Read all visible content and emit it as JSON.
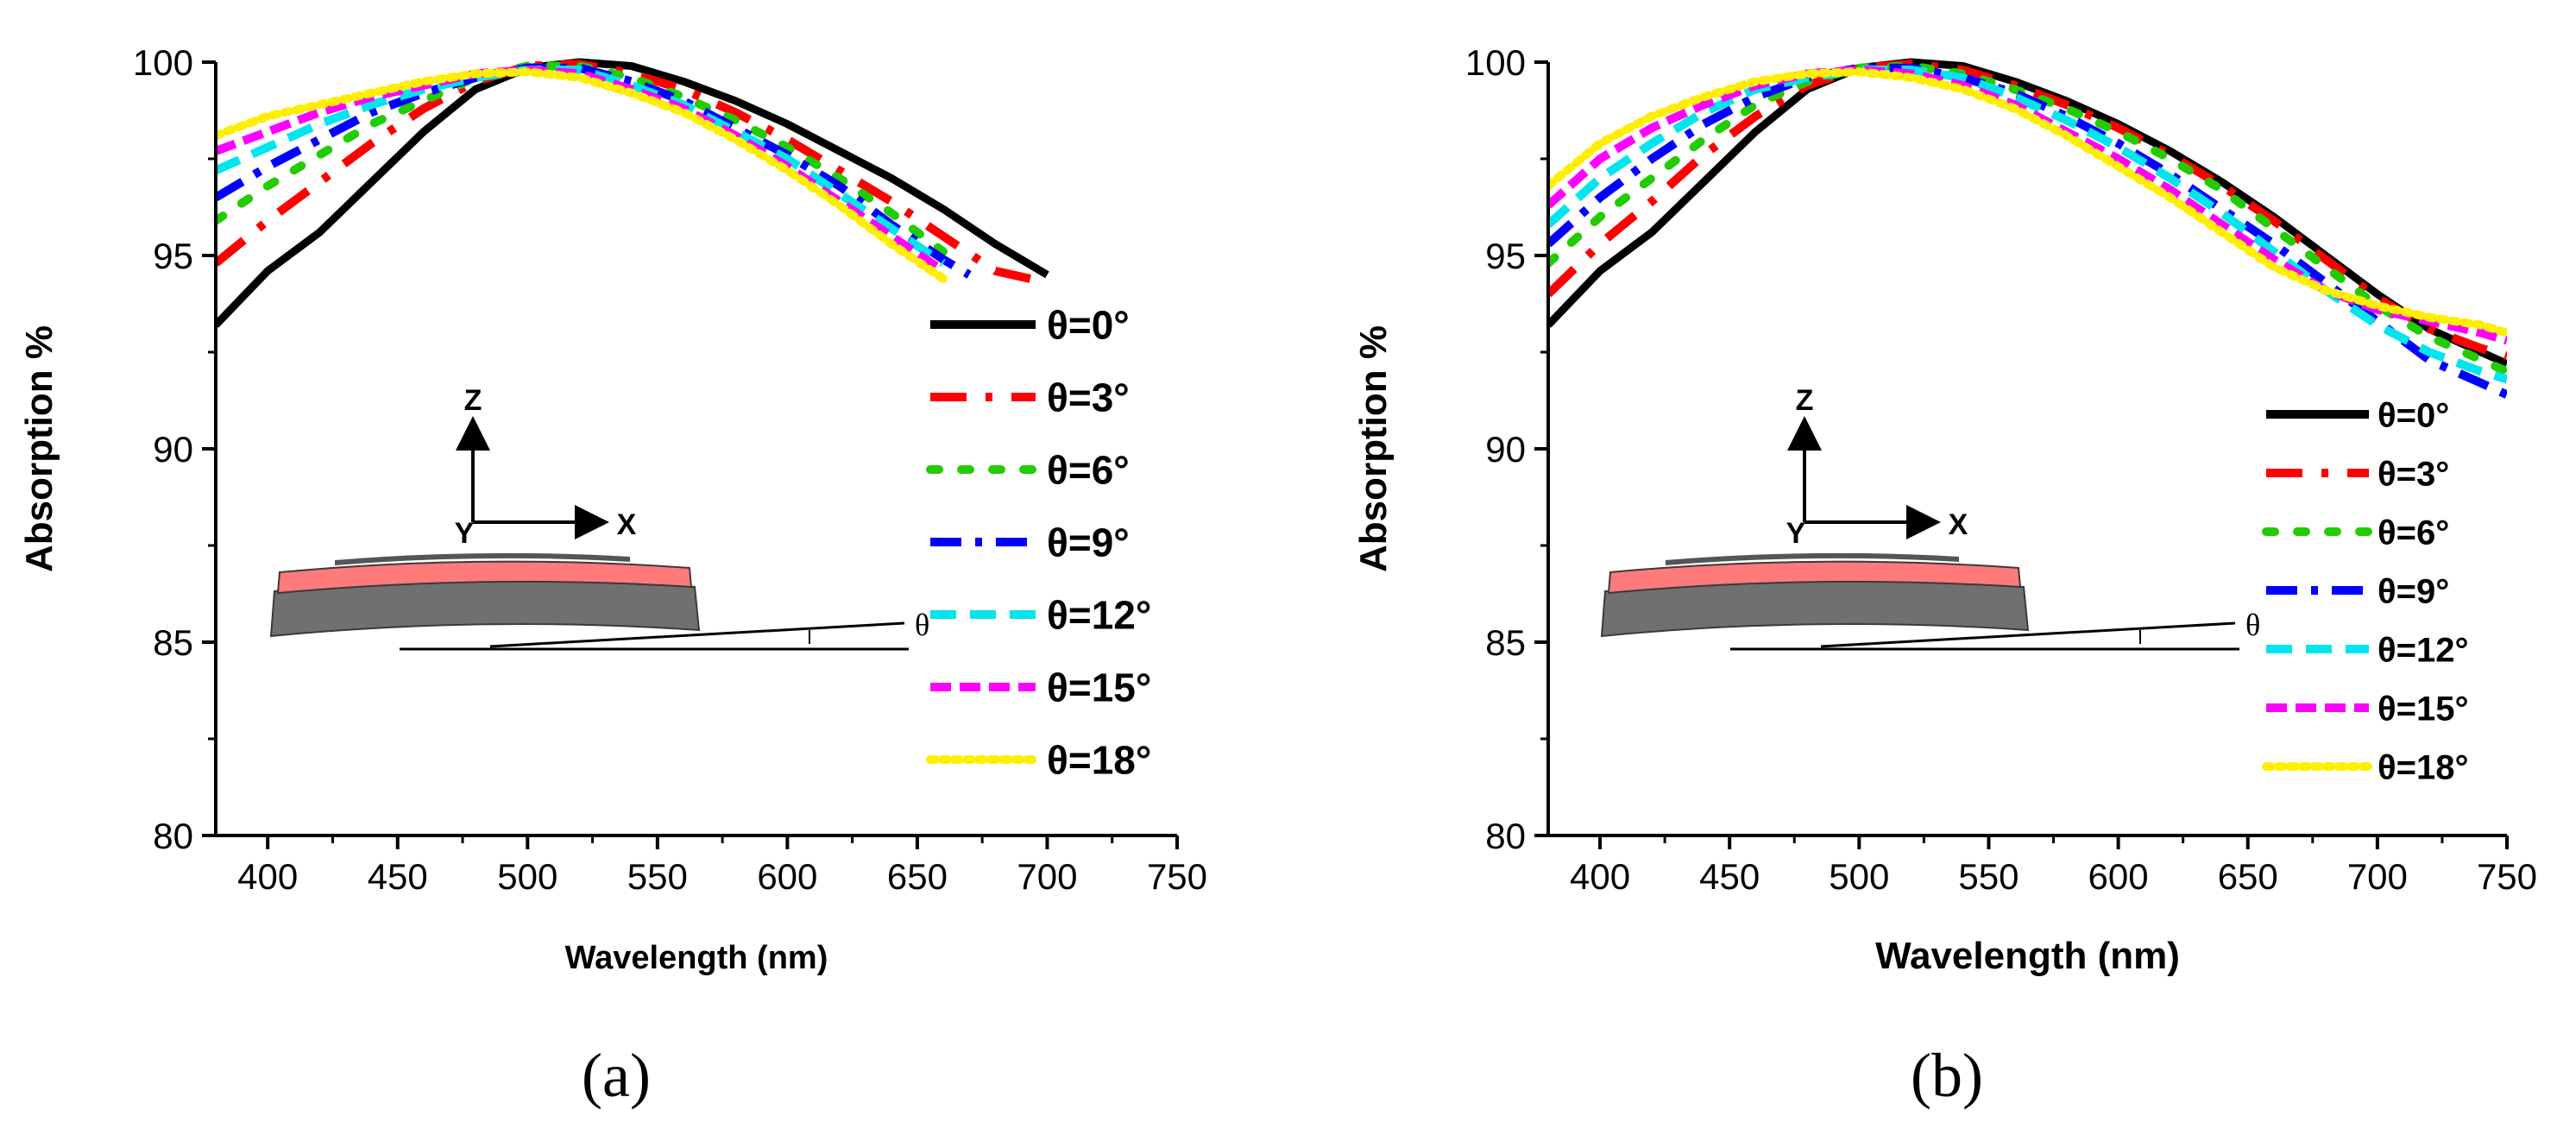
{
  "panel_captions": [
    "(a)",
    "(b)"
  ],
  "inset": {
    "z_label": "Z",
    "y_label": "Y",
    "x_label": "X",
    "angle_label": "θ"
  },
  "colors": {
    "θ=0°": "#000000",
    "θ=3°": "#ff0000",
    "θ=6°": "#22cc00",
    "θ=9°": "#0000ff",
    "θ=12°": "#00e5ee",
    "θ=15°": "#ff00ff",
    "θ=18°": "#ffee00"
  },
  "chart_data": [
    {
      "type": "line",
      "xlabel": "Wavelength (nm)",
      "ylabel": "Absorption %",
      "xlim": [
        380,
        750
      ],
      "ylim": [
        80,
        100
      ],
      "xticks": [
        400,
        450,
        500,
        550,
        600,
        650,
        700,
        750
      ],
      "yticks": [
        80,
        85,
        90,
        95,
        100
      ],
      "legend_position": "right",
      "legend_style": "large",
      "series": [
        {
          "name": "θ=0°",
          "x": [
            380,
            400,
            420,
            440,
            460,
            480,
            500,
            520,
            540,
            560,
            580,
            600,
            620,
            640,
            660,
            680,
            700
          ],
          "y": [
            93.2,
            94.6,
            95.6,
            96.9,
            98.2,
            99.3,
            99.85,
            100,
            99.9,
            99.5,
            99.0,
            98.4,
            97.7,
            97.0,
            96.2,
            95.3,
            94.5
          ]
        },
        {
          "name": "θ=3°",
          "x": [
            380,
            400,
            420,
            440,
            460,
            480,
            500,
            520,
            540,
            560,
            580,
            600,
            620,
            640,
            660,
            680,
            700
          ],
          "y": [
            94.8,
            95.9,
            96.9,
            97.9,
            98.8,
            99.5,
            99.9,
            99.95,
            99.7,
            99.3,
            98.7,
            98.0,
            97.2,
            96.4,
            95.5,
            94.6,
            94.3
          ]
        },
        {
          "name": "θ=6°",
          "x": [
            380,
            400,
            420,
            440,
            460,
            480,
            500,
            520,
            540,
            560,
            580,
            600,
            620,
            640,
            660
          ],
          "y": [
            95.9,
            96.8,
            97.6,
            98.4,
            99.0,
            99.6,
            99.9,
            99.9,
            99.6,
            99.1,
            98.5,
            97.8,
            97.0,
            96.1,
            95.1
          ]
        },
        {
          "name": "θ=9°",
          "x": [
            380,
            400,
            420,
            440,
            460,
            480,
            500,
            520,
            540,
            560,
            580,
            600,
            620,
            640,
            660,
            670
          ],
          "y": [
            96.5,
            97.3,
            98.0,
            98.7,
            99.2,
            99.6,
            99.85,
            99.85,
            99.5,
            99.0,
            98.3,
            97.6,
            96.8,
            95.8,
            94.9,
            94.5
          ]
        },
        {
          "name": "θ=12°",
          "x": [
            380,
            400,
            420,
            440,
            460,
            480,
            500,
            520,
            540,
            560,
            580,
            600,
            620,
            640,
            660
          ],
          "y": [
            97.2,
            97.8,
            98.4,
            98.9,
            99.3,
            99.6,
            99.8,
            99.8,
            99.4,
            98.9,
            98.2,
            97.5,
            96.6,
            95.7,
            94.8
          ]
        },
        {
          "name": "θ=15°",
          "x": [
            380,
            400,
            420,
            440,
            460,
            480,
            500,
            520,
            540,
            560,
            580,
            600,
            620,
            640,
            660
          ],
          "y": [
            97.7,
            98.2,
            98.7,
            99.1,
            99.4,
            99.7,
            99.8,
            99.7,
            99.3,
            98.8,
            98.1,
            97.3,
            96.4,
            95.5,
            94.6
          ]
        },
        {
          "name": "θ=18°",
          "x": [
            380,
            400,
            420,
            440,
            460,
            480,
            500,
            520,
            540,
            560,
            580,
            600,
            620,
            640,
            660
          ],
          "y": [
            98.1,
            98.6,
            98.9,
            99.2,
            99.5,
            99.7,
            99.75,
            99.6,
            99.2,
            98.7,
            98.0,
            97.2,
            96.3,
            95.3,
            94.4
          ]
        }
      ]
    },
    {
      "type": "line",
      "xlabel": "Wavelength (nm)",
      "ylabel": "Absorption %",
      "xlim": [
        380,
        750
      ],
      "ylim": [
        80,
        100
      ],
      "xticks": [
        400,
        450,
        500,
        550,
        600,
        650,
        700,
        750
      ],
      "yticks": [
        80,
        85,
        90,
        95,
        100
      ],
      "legend_position": "right",
      "legend_style": "compact",
      "series": [
        {
          "name": "θ=0°",
          "x": [
            380,
            400,
            420,
            440,
            460,
            480,
            500,
            520,
            540,
            560,
            580,
            600,
            620,
            640,
            660,
            680,
            700,
            720,
            740,
            750
          ],
          "y": [
            93.2,
            94.6,
            95.6,
            96.9,
            98.2,
            99.3,
            99.85,
            100,
            99.9,
            99.5,
            99.0,
            98.4,
            97.7,
            96.9,
            96.0,
            95.0,
            94.0,
            93.1,
            92.5,
            92.2
          ]
        },
        {
          "name": "θ=3°",
          "x": [
            380,
            400,
            420,
            440,
            460,
            480,
            500,
            520,
            540,
            560,
            580,
            600,
            620,
            640,
            660,
            680,
            700,
            720,
            740,
            750
          ],
          "y": [
            94.0,
            95.3,
            96.4,
            97.6,
            98.6,
            99.4,
            99.85,
            99.95,
            99.8,
            99.4,
            98.9,
            98.3,
            97.6,
            96.8,
            95.9,
            94.9,
            93.9,
            93.1,
            92.6,
            92.4
          ]
        },
        {
          "name": "θ=6°",
          "x": [
            380,
            400,
            420,
            440,
            460,
            480,
            500,
            520,
            540,
            560,
            580,
            600,
            620,
            640,
            660,
            680,
            700,
            720,
            740,
            750
          ],
          "y": [
            94.8,
            96.0,
            97.0,
            98.0,
            98.9,
            99.5,
            99.85,
            99.9,
            99.7,
            99.3,
            98.8,
            98.2,
            97.5,
            96.7,
            95.7,
            94.7,
            93.7,
            92.9,
            92.3,
            92.0
          ]
        },
        {
          "name": "θ=9°",
          "x": [
            380,
            400,
            420,
            440,
            460,
            480,
            500,
            520,
            540,
            560,
            580,
            600,
            620,
            640,
            660,
            680,
            700,
            720,
            740,
            750
          ],
          "y": [
            95.3,
            96.5,
            97.5,
            98.4,
            99.1,
            99.6,
            99.85,
            99.85,
            99.6,
            99.2,
            98.6,
            97.9,
            97.1,
            96.2,
            95.3,
            94.3,
            93.3,
            92.3,
            91.7,
            91.4
          ]
        },
        {
          "name": "θ=12°",
          "x": [
            380,
            400,
            420,
            440,
            460,
            480,
            500,
            520,
            540,
            560,
            580,
            600,
            620,
            640,
            660,
            680,
            700,
            720,
            740,
            750
          ],
          "y": [
            95.8,
            97.0,
            97.9,
            98.7,
            99.3,
            99.6,
            99.8,
            99.8,
            99.6,
            99.1,
            98.5,
            97.8,
            97.0,
            96.1,
            95.1,
            94.1,
            93.2,
            92.5,
            92.0,
            91.8
          ]
        },
        {
          "name": "θ=15°",
          "x": [
            380,
            400,
            420,
            440,
            460,
            480,
            500,
            520,
            540,
            560,
            580,
            600,
            620,
            640,
            660,
            680,
            700,
            720,
            740,
            750
          ],
          "y": [
            96.3,
            97.5,
            98.3,
            98.9,
            99.4,
            99.7,
            99.8,
            99.7,
            99.4,
            98.9,
            98.2,
            97.5,
            96.7,
            95.8,
            94.9,
            94.1,
            93.6,
            93.3,
            93.0,
            92.8
          ]
        },
        {
          "name": "θ=18°",
          "x": [
            380,
            400,
            420,
            440,
            460,
            480,
            500,
            520,
            540,
            560,
            580,
            600,
            620,
            640,
            660,
            680,
            700,
            720,
            740,
            750
          ],
          "y": [
            96.8,
            97.9,
            98.6,
            99.1,
            99.5,
            99.7,
            99.75,
            99.6,
            99.3,
            98.8,
            98.1,
            97.3,
            96.5,
            95.6,
            94.7,
            94.1,
            93.7,
            93.4,
            93.2,
            93.0
          ]
        }
      ]
    }
  ]
}
